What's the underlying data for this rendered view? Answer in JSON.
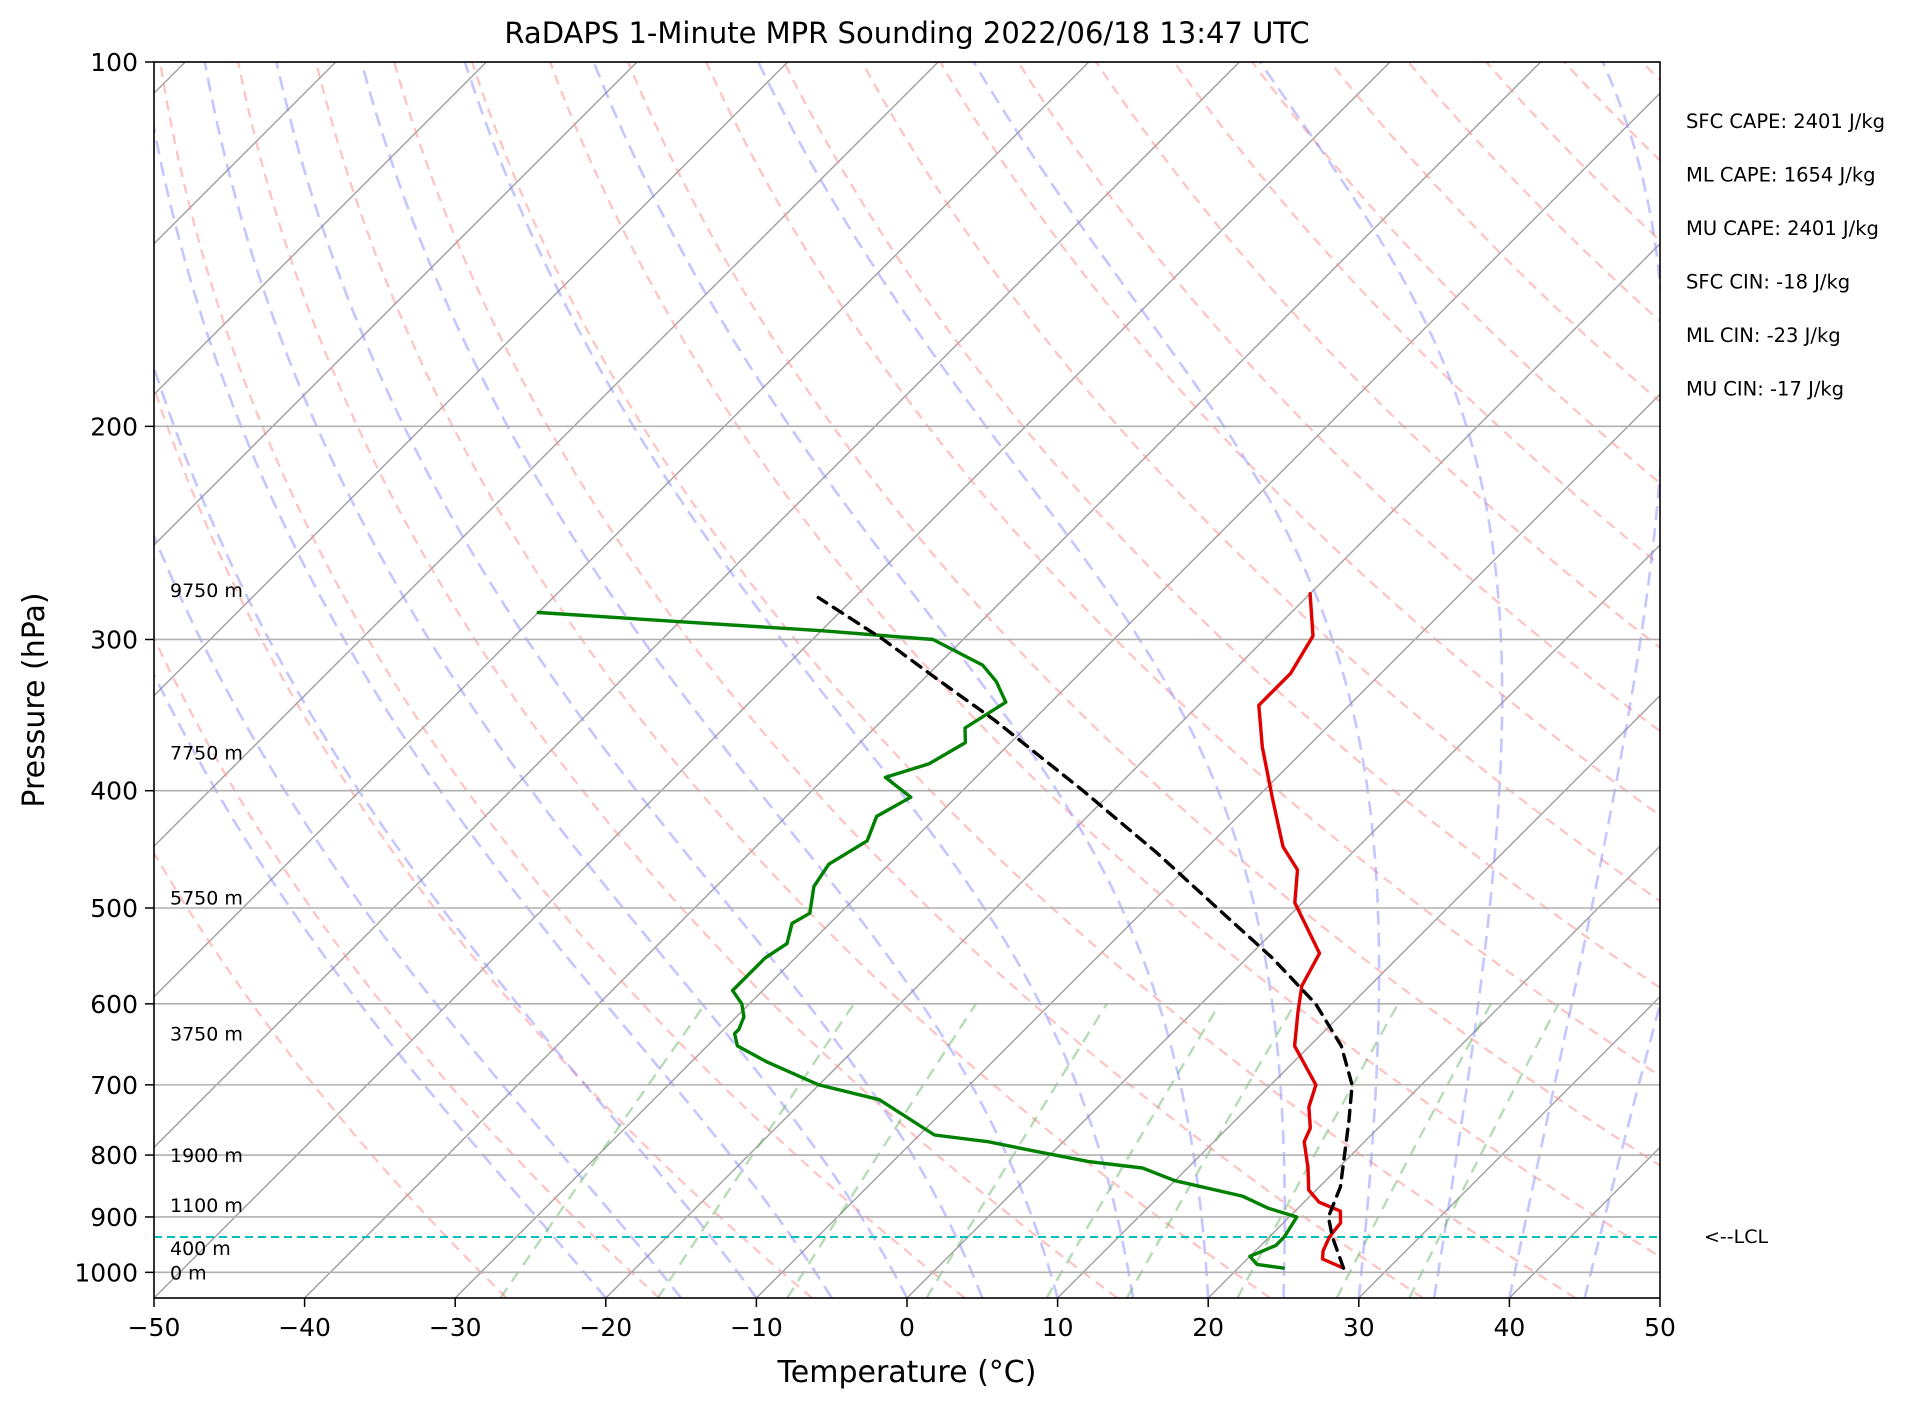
{
  "chart_data": {
    "type": "skew-t",
    "title": "RaDAPS 1-Minute MPR Sounding 2022/06/18 13:47 UTC",
    "xlabel": "Temperature (°C)",
    "ylabel": "Pressure (hPa)",
    "xlim": [
      -50,
      50
    ],
    "ylim": [
      1050,
      100
    ],
    "y_scale": "log",
    "x_ticks": [
      "−50",
      "−40",
      "−30",
      "−20",
      "−10",
      "0",
      "10",
      "20",
      "30",
      "40",
      "50"
    ],
    "y_ticks": [
      "100",
      "200",
      "300",
      "400",
      "500",
      "600",
      "700",
      "800",
      "900",
      "1000"
    ],
    "grid": true,
    "height_labels": [
      {
        "text": "0 m",
        "p": 1000
      },
      {
        "text": "400 m",
        "p": 955
      },
      {
        "text": "1100 m",
        "p": 880
      },
      {
        "text": "1900 m",
        "p": 800
      },
      {
        "text": "3750 m",
        "p": 635
      },
      {
        "text": "5750 m",
        "p": 490
      },
      {
        "text": "7750 m",
        "p": 372
      },
      {
        "text": "9750 m",
        "p": 273
      }
    ],
    "indices": [
      "SFC CAPE: 2401 J/kg",
      "ML CAPE: 1654 J/kg",
      "MU CAPE: 2401 J/kg",
      "SFC CIN: -18 J/kg",
      "ML CIN: -23 J/kg",
      "MU CIN: -17 J/kg"
    ],
    "lcl": {
      "label": "<--LCL",
      "pressure": 935,
      "color": "#00bfbf"
    },
    "series": [
      {
        "key": "temperature",
        "color": "#e00000",
        "points": [
          [
            27.0,
            992
          ],
          [
            25.0,
            975
          ],
          [
            24.5,
            960
          ],
          [
            24.0,
            935
          ],
          [
            23.8,
            910
          ],
          [
            23.0,
            890
          ],
          [
            21.0,
            875
          ],
          [
            19.5,
            855
          ],
          [
            18.0,
            820
          ],
          [
            16.0,
            780
          ],
          [
            15.5,
            760
          ],
          [
            14.0,
            730
          ],
          [
            13.0,
            700
          ],
          [
            9.0,
            650
          ],
          [
            7.0,
            610
          ],
          [
            5.5,
            580
          ],
          [
            4.5,
            545
          ],
          [
            -0.5,
            495
          ],
          [
            -2.5,
            465
          ],
          [
            -5.0,
            445
          ],
          [
            -9.0,
            405
          ],
          [
            -13.0,
            368
          ],
          [
            -16.0,
            340
          ],
          [
            -16.0,
            320
          ],
          [
            -17.0,
            298
          ],
          [
            -20.0,
            275
          ]
        ]
      },
      {
        "key": "dewpoint",
        "color": "#008000",
        "points": [
          [
            23.0,
            992
          ],
          [
            21.0,
            985
          ],
          [
            20.0,
            970
          ],
          [
            20.5,
            960
          ],
          [
            21.0,
            950
          ],
          [
            21.0,
            935
          ],
          [
            20.5,
            900
          ],
          [
            18.0,
            885
          ],
          [
            15.5,
            865
          ],
          [
            10.0,
            840
          ],
          [
            7.0,
            820
          ],
          [
            3.0,
            810
          ],
          [
            -1.0,
            795
          ],
          [
            -5.0,
            780
          ],
          [
            -9.0,
            770
          ],
          [
            -15.0,
            720
          ],
          [
            -20.0,
            700
          ],
          [
            -25.0,
            670
          ],
          [
            -28.0,
            650
          ],
          [
            -29.0,
            635
          ],
          [
            -29.0,
            630
          ],
          [
            -29.5,
            615
          ],
          [
            -30.5,
            600
          ],
          [
            -32.0,
            585
          ],
          [
            -32.0,
            550
          ],
          [
            -31.5,
            535
          ],
          [
            -32.5,
            515
          ],
          [
            -32.0,
            505
          ],
          [
            -33.5,
            480
          ],
          [
            -34.0,
            460
          ],
          [
            -33.0,
            440
          ],
          [
            -34.0,
            420
          ],
          [
            -33.0,
            405
          ],
          [
            -36.0,
            390
          ],
          [
            -34.0,
            380
          ],
          [
            -33.0,
            365
          ],
          [
            -34.0,
            355
          ],
          [
            -33.0,
            338
          ],
          [
            -35.0,
            325
          ],
          [
            -37.0,
            315
          ],
          [
            -42.0,
            300
          ],
          [
            -50.0,
            295
          ],
          [
            -60.0,
            290
          ],
          [
            -70.0,
            285
          ]
        ]
      },
      {
        "key": "parcel",
        "color": "#000000",
        "points": [
          [
            27.0,
            992
          ],
          [
            24.2,
            935
          ],
          [
            22.6,
            900
          ],
          [
            21.4,
            850
          ],
          [
            17.6,
            750
          ],
          [
            15.4,
            700
          ],
          [
            12.1,
            650
          ],
          [
            7.6,
            600
          ],
          [
            1.7,
            550
          ],
          [
            -5.3,
            500
          ],
          [
            -13.0,
            450
          ],
          [
            -22.0,
            400
          ],
          [
            -32.5,
            350
          ],
          [
            -38.7,
            325
          ],
          [
            -45.3,
            300
          ],
          [
            -52.4,
            277
          ]
        ]
      }
    ]
  }
}
